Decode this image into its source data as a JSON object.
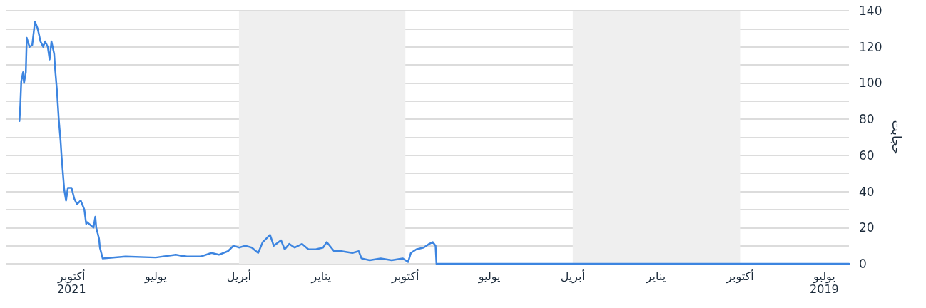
{
  "chart_data": {
    "type": "line",
    "ylabel": "حجابت",
    "x": [
      "2019-06-04",
      "2020-08-28",
      "2020-08-29",
      "2020-09-01",
      "2020-09-05",
      "2020-09-11",
      "2020-09-19",
      "2020-09-25",
      "2020-09-28",
      "2020-10-04",
      "2020-10-16",
      "2020-10-28",
      "2020-11-09",
      "2020-11-18",
      "2020-11-21",
      "2020-11-28",
      "2020-12-10",
      "2020-12-18",
      "2020-12-26",
      "2020-12-30",
      "2021-01-07",
      "2021-01-15",
      "2021-01-22",
      "2021-01-30",
      "2021-02-05",
      "2021-02-10",
      "2021-02-14",
      "2021-02-22",
      "2021-02-26",
      "2021-03-06",
      "2021-03-11",
      "2021-03-18",
      "2021-03-25",
      "2021-04-01",
      "2021-04-07",
      "2021-04-13",
      "2021-04-23",
      "2021-05-01",
      "2021-05-13",
      "2021-05-28",
      "2021-06-09",
      "2021-07-01",
      "2021-08-03",
      "2021-08-28",
      "2021-08-31",
      "2021-09-01",
      "2021-09-04",
      "2021-09-05",
      "2021-09-07",
      "2021-09-14",
      "2021-09-15",
      "2021-09-17",
      "2021-09-21",
      "2021-09-25",
      "2021-09-28",
      "2021-10-01",
      "2021-10-05",
      "2021-10-07",
      "2021-10-09",
      "2021-10-12",
      "2021-10-13",
      "2021-10-15",
      "2021-10-17",
      "2021-10-19",
      "2021-10-20",
      "2021-10-23",
      "2021-10-25",
      "2021-10-27",
      "2021-10-30",
      "2021-11-01",
      "2021-11-04",
      "2021-11-07",
      "2021-11-10",
      "2021-11-13",
      "2021-11-16",
      "2021-11-19",
      "2021-11-20",
      "2021-11-22",
      "2021-11-23",
      "2021-11-25",
      "2021-11-26",
      "2021-11-27"
    ],
    "series": [
      {
        "color": "#3d85e0",
        "values": [
          0,
          0,
          10,
          12,
          11,
          9,
          8,
          6,
          1,
          3,
          2,
          3,
          2,
          3,
          7,
          6,
          7,
          7,
          12,
          9,
          8,
          8,
          11,
          9,
          11,
          8,
          13,
          10,
          16,
          12,
          6,
          9,
          10,
          9,
          10,
          7,
          5,
          6,
          4,
          4,
          5,
          3.5,
          4,
          3,
          9,
          14,
          20,
          26,
          20,
          23,
          22,
          30,
          35,
          33,
          36,
          42,
          42,
          35,
          41,
          60,
          68,
          80,
          96,
          108,
          116,
          123,
          113,
          120,
          123,
          120,
          123,
          130,
          134,
          121,
          120,
          125,
          106,
          100,
          106,
          101,
          88,
          79
        ]
      }
    ],
    "xlim": [
      "2021-12-12",
      "2019-06-04"
    ],
    "xticks": [
      {
        "value": "2019-07-01",
        "label": "يوليو\n2019"
      },
      {
        "value": "2019-10-01",
        "label": "أكتوبر"
      },
      {
        "value": "2020-01-01",
        "label": "يناير"
      },
      {
        "value": "2020-04-01",
        "label": "أبريل"
      },
      {
        "value": "2020-07-01",
        "label": "يوليو"
      },
      {
        "value": "2020-10-01",
        "label": "أكتوبر"
      },
      {
        "value": "2021-01-01",
        "label": "يناير"
      },
      {
        "value": "2021-04-01",
        "label": "أبريل"
      },
      {
        "value": "2021-07-01",
        "label": "يوليو"
      },
      {
        "value": "2021-10-01",
        "label": "أكتوبر\n2021"
      }
    ],
    "ylim": [
      0,
      140
    ],
    "yticks": [
      0,
      {
        "value": 10,
        "label": null
      },
      20,
      {
        "value": 30,
        "label": null
      },
      40,
      {
        "value": 50,
        "label": null
      },
      60,
      {
        "value": 70,
        "label": null
      },
      80,
      {
        "value": 90,
        "label": null
      },
      100,
      {
        "value": 110,
        "label": null
      },
      120,
      {
        "value": 130,
        "label": null
      },
      140
    ],
    "bands": [
      {
        "axis": "x",
        "from": "2019-10-01",
        "to": "2020-04-01",
        "color": "#efefef"
      },
      {
        "axis": "x",
        "from": "2020-10-01",
        "to": "2021-04-01",
        "color": "#efefef"
      }
    ],
    "grid": "y",
    "marker": "none",
    "line_style": "solid"
  }
}
